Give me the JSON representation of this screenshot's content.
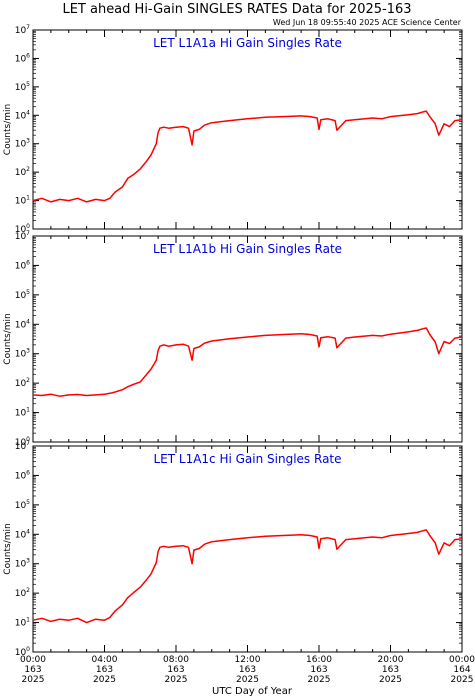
{
  "title": "LET ahead Hi-Gain SINGLES RATES Data for 2025-163",
  "timestamp": "Wed Jun 18 09:55:40 2025 ACE Science Center",
  "xlabel": "UTC Day of Year",
  "ylabel": "Counts/min",
  "colors": {
    "series": "#ff0000",
    "panel_title": "#0000dd",
    "axes": "#000000",
    "background": "#ffffff"
  },
  "x_ticks": [
    {
      "time": "00:00",
      "day": "163",
      "year": "2025"
    },
    {
      "time": "04:00",
      "day": "163",
      "year": "2025"
    },
    {
      "time": "08:00",
      "day": "163",
      "year": "2025"
    },
    {
      "time": "12:00",
      "day": "163",
      "year": "2025"
    },
    {
      "time": "16:00",
      "day": "163",
      "year": "2025"
    },
    {
      "time": "20:00",
      "day": "163",
      "year": "2025"
    },
    {
      "time": "00:00",
      "day": "164",
      "year": "2025"
    }
  ],
  "y_tick_labels": [
    "10^0",
    "10^1",
    "10^2",
    "10^3",
    "10^4",
    "10^5",
    "10^6",
    "10^7"
  ],
  "chart_data": [
    {
      "type": "line",
      "title": "LET L1A1a Hi Gain Singles Rate",
      "xlabel": "UTC Day of Year",
      "ylabel": "Counts/min",
      "x_unit": "hours from 2025-163 00:00",
      "xlim": [
        0,
        24
      ],
      "ylim": [
        1,
        10000000
      ],
      "y_scale": "log",
      "series": [
        {
          "x": [
            0,
            0.5,
            1,
            1.5,
            2,
            2.5,
            3,
            3.5,
            4,
            4.3,
            4.6,
            5,
            5.3,
            5.6,
            6,
            6.3,
            6.6,
            6.9,
            7,
            7.1,
            7.3,
            7.6,
            8,
            8.4,
            8.7,
            8.9,
            9,
            9.3,
            9.6,
            10,
            11,
            12,
            13,
            14,
            15,
            15.5,
            15.9,
            16,
            16.1,
            16.5,
            16.9,
            17,
            17.5,
            18,
            19,
            19.5,
            20,
            21,
            21.5,
            21.8,
            22,
            22.2,
            22.5,
            22.7,
            23,
            23.3,
            23.6,
            24
          ],
          "y": [
            10,
            12,
            9,
            11,
            10,
            12,
            9,
            11,
            10,
            12,
            20,
            30,
            60,
            80,
            130,
            220,
            400,
            1000,
            2500,
            3500,
            3800,
            3500,
            3800,
            4000,
            3500,
            900,
            2800,
            3200,
            4500,
            5500,
            6500,
            7500,
            8500,
            9000,
            9500,
            9000,
            8000,
            3200,
            7000,
            7500,
            6500,
            3000,
            6500,
            7000,
            8000,
            7500,
            9000,
            10500,
            11500,
            13000,
            14000,
            9000,
            5000,
            2000,
            5000,
            4000,
            6500,
            7000
          ]
        }
      ]
    },
    {
      "type": "line",
      "title": "LET L1A1b Hi Gain Singles Rate",
      "xlabel": "UTC Day of Year",
      "ylabel": "Counts/min",
      "x_unit": "hours from 2025-163 00:00",
      "xlim": [
        0,
        24
      ],
      "ylim": [
        1,
        10000000
      ],
      "y_scale": "log",
      "series": [
        {
          "x": [
            0,
            0.5,
            1,
            1.5,
            2,
            2.5,
            3,
            3.5,
            4,
            4.3,
            4.6,
            5,
            5.3,
            5.6,
            6,
            6.3,
            6.6,
            6.9,
            7,
            7.1,
            7.3,
            7.6,
            8,
            8.4,
            8.7,
            8.9,
            9,
            9.3,
            9.6,
            10,
            11,
            12,
            13,
            14,
            15,
            15.5,
            15.9,
            16,
            16.1,
            16.5,
            16.9,
            17,
            17.5,
            18,
            19,
            19.5,
            20,
            21,
            21.5,
            21.8,
            22,
            22.2,
            22.5,
            22.7,
            23,
            23.3,
            23.6,
            24
          ],
          "y": [
            40,
            38,
            42,
            36,
            40,
            41,
            38,
            40,
            42,
            45,
            50,
            60,
            75,
            90,
            110,
            180,
            300,
            600,
            1300,
            1800,
            2000,
            1800,
            2000,
            2100,
            1800,
            600,
            1500,
            1700,
            2300,
            2700,
            3200,
            3700,
            4200,
            4500,
            4800,
            4500,
            4000,
            1700,
            3500,
            3800,
            3400,
            1600,
            3400,
            3700,
            4200,
            4000,
            4600,
            5500,
            6200,
            7000,
            7500,
            4500,
            2500,
            1000,
            2600,
            2200,
            3400,
            3700
          ]
        }
      ]
    },
    {
      "type": "line",
      "title": "LET L1A1c Hi Gain Singles Rate",
      "xlabel": "UTC Day of Year",
      "ylabel": "Counts/min",
      "x_unit": "hours from 2025-163 00:00",
      "xlim": [
        0,
        24
      ],
      "ylim": [
        1,
        10000000
      ],
      "y_scale": "log",
      "series": [
        {
          "x": [
            0,
            0.5,
            1,
            1.5,
            2,
            2.5,
            3,
            3.5,
            4,
            4.3,
            4.6,
            5,
            5.3,
            5.6,
            6,
            6.3,
            6.6,
            6.9,
            7,
            7.1,
            7.3,
            7.6,
            8,
            8.4,
            8.7,
            8.9,
            9,
            9.3,
            9.6,
            10,
            11,
            12,
            13,
            14,
            15,
            15.5,
            15.9,
            16,
            16.1,
            16.5,
            16.9,
            17,
            17.5,
            18,
            19,
            19.5,
            20,
            21,
            21.5,
            21.8,
            22,
            22.2,
            22.5,
            22.7,
            23,
            23.3,
            23.6,
            24
          ],
          "y": [
            12,
            14,
            11,
            13,
            12,
            14,
            10,
            13,
            12,
            15,
            25,
            40,
            70,
            100,
            160,
            260,
            450,
            1100,
            2600,
            3600,
            3900,
            3600,
            3900,
            4100,
            3600,
            1000,
            2900,
            3300,
            4600,
            5600,
            6600,
            7600,
            8600,
            9100,
            9600,
            9100,
            8100,
            3300,
            7100,
            7600,
            6600,
            3100,
            6600,
            7100,
            8100,
            7600,
            9100,
            10600,
            11600,
            13100,
            14100,
            9100,
            5100,
            2100,
            5100,
            4100,
            6600,
            7100
          ]
        }
      ]
    }
  ]
}
